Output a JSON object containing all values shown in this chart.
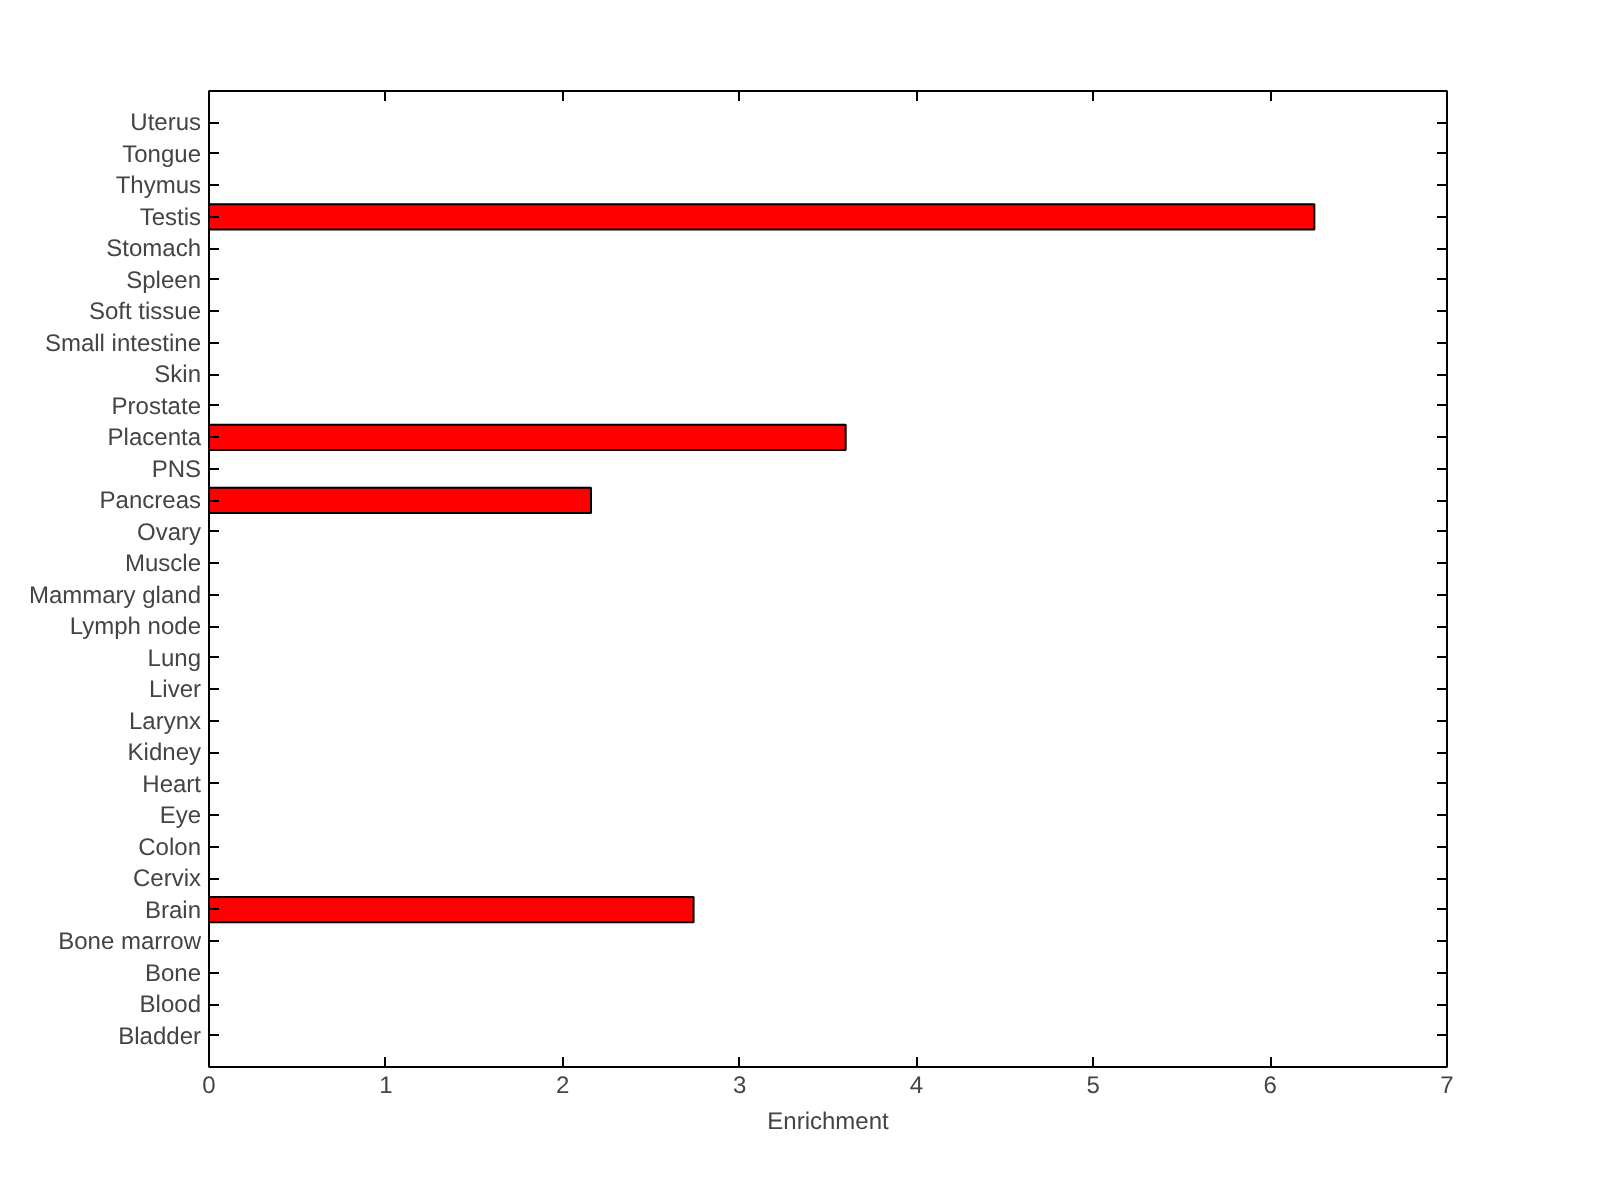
{
  "chart_data": {
    "type": "bar",
    "orientation": "horizontal",
    "xlabel": "Enrichment",
    "categories": [
      "Uterus",
      "Tongue",
      "Thymus",
      "Testis",
      "Stomach",
      "Spleen",
      "Soft tissue",
      "Small intestine",
      "Skin",
      "Prostate",
      "Placenta",
      "PNS",
      "Pancreas",
      "Ovary",
      "Muscle",
      "Mammary gland",
      "Lymph node",
      "Lung",
      "Liver",
      "Larynx",
      "Kidney",
      "Heart",
      "Eye",
      "Colon",
      "Cervix",
      "Brain",
      "Bone marrow",
      "Bone",
      "Blood",
      "Bladder"
    ],
    "values": [
      0,
      0,
      0,
      6.25,
      0,
      0,
      0,
      0,
      0,
      0,
      3.6,
      0,
      2.16,
      0,
      0,
      0,
      0,
      0,
      0,
      0,
      0,
      0,
      0,
      0,
      0,
      2.74,
      0,
      0,
      0,
      0
    ],
    "color": "#ff0000",
    "xlim": [
      0,
      7
    ],
    "xticks": [
      0,
      1,
      2,
      3,
      4,
      5,
      6,
      7
    ],
    "grid": false
  }
}
